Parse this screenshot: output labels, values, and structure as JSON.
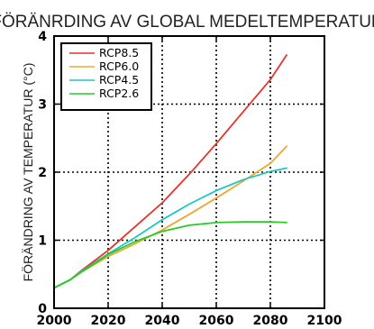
{
  "chart_data": {
    "type": "line",
    "title": "FÖRÄNRDING AV GLOBAL MEDELTEMPERATUR",
    "xlabel": "",
    "ylabel": "FÖRÄNDRING AV TEMPERATUR (°C)",
    "xlim": [
      2000,
      2100
    ],
    "ylim": [
      0,
      4
    ],
    "xticks": [
      2000,
      2020,
      2040,
      2060,
      2080,
      2100
    ],
    "yticks": [
      0,
      1,
      2,
      3,
      4
    ],
    "grid": true,
    "legend_position": "top-left",
    "x": [
      2000,
      2006,
      2010,
      2020,
      2030,
      2040,
      2050,
      2060,
      2070,
      2080,
      2086
    ],
    "series": [
      {
        "name": "RCP8.5",
        "color": "#e8322b",
        "values": [
          0.3,
          0.42,
          0.55,
          0.85,
          1.2,
          1.55,
          1.97,
          2.42,
          2.89,
          3.36,
          3.72
        ]
      },
      {
        "name": "RCP6.0",
        "color": "#f0a630",
        "values": [
          0.3,
          0.42,
          0.53,
          0.76,
          0.95,
          1.15,
          1.38,
          1.62,
          1.87,
          2.13,
          2.38
        ]
      },
      {
        "name": "RCP4.5",
        "color": "#1ec6c6",
        "values": [
          0.3,
          0.42,
          0.54,
          0.8,
          1.04,
          1.3,
          1.53,
          1.73,
          1.89,
          2.01,
          2.06
        ]
      },
      {
        "name": "RCP2.6",
        "color": "#26cc26",
        "values": [
          0.3,
          0.42,
          0.53,
          0.79,
          0.98,
          1.13,
          1.22,
          1.26,
          1.27,
          1.27,
          1.26
        ]
      }
    ]
  }
}
